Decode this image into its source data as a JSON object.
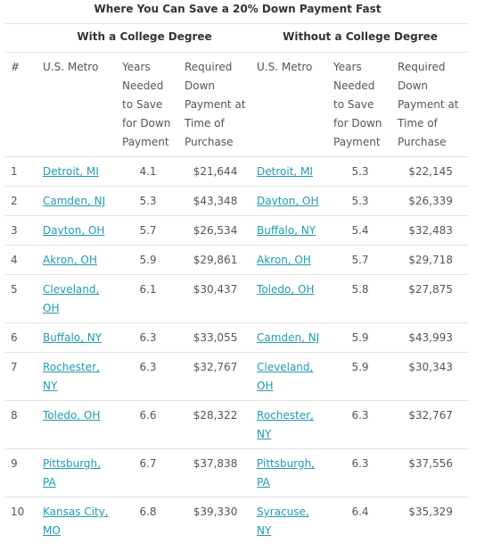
{
  "title": "Where You Can Save a 20% Down Payment Fast",
  "groups": [
    "With a College Degree",
    "Without a College Degree"
  ],
  "columns": [
    "#",
    "U.S. Metro",
    "Years Needed to Save for Down Payment",
    "Required Down Payment at Time of Purchase",
    "U.S. Metro",
    "Years Needed to Save for Down Payment",
    "Required Down Payment at Time of Purchase"
  ],
  "rows": [
    [
      "1",
      "Detroit, MI",
      "4.1",
      "$21,644",
      "Detroit, MI",
      "5.3",
      "$22,145"
    ],
    [
      "2",
      "Camden, NJ",
      "5.3",
      "$43,348",
      "Dayton, OH",
      "5.3",
      "$26,339"
    ],
    [
      "3",
      "Dayton, OH",
      "5.7",
      "$26,534",
      "Buffalo, NY",
      "5.4",
      "$32,483"
    ],
    [
      "4",
      "Akron, OH",
      "5.9",
      "$29,861",
      "Akron, OH",
      "5.7",
      "$29,718"
    ],
    [
      "5",
      "Cleveland, OH",
      "6.1",
      "$30,437",
      "Toledo, OH",
      "5.8",
      "$27,875"
    ],
    [
      "6",
      "Buffalo, NY",
      "6.3",
      "$33,055",
      "Camden, NJ",
      "5.9",
      "$43,993"
    ],
    [
      "7",
      "Rochester, NY",
      "6.3",
      "$32,767",
      "Cleveland, OH",
      "5.9",
      "$30,343"
    ],
    [
      "8",
      "Toledo, OH",
      "6.6",
      "$28,322",
      "Rochester, NY",
      "6.3",
      "$32,767"
    ],
    [
      "9",
      "Pittsburgh, PA",
      "6.7",
      "$37,838",
      "Pittsburgh, PA",
      "6.3",
      "$37,556"
    ],
    [
      "10",
      "Kansas City, MO",
      "6.8",
      "$39,330",
      "Syracuse, NY",
      "6.4",
      "$35,329"
    ]
  ]
}
